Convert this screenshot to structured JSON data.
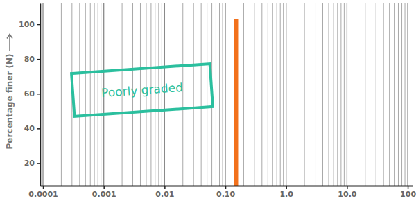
{
  "chart_data": {
    "type": "bar",
    "ylabel": "Percentage finer (N)",
    "x": [
      0.15
    ],
    "values": [
      103
    ],
    "color": "#f2711c",
    "log": "x",
    "grid": true,
    "xlim": [
      9e-05,
      120
    ],
    "xticks": [
      {
        "value": 0.0001,
        "label": "0.0001"
      },
      {
        "value": 0.001,
        "label": "0.001"
      },
      {
        "value": 0.01,
        "label": "0.01"
      },
      {
        "value": 0.1,
        "label": "0.10"
      },
      {
        "value": 1,
        "label": "1.0"
      },
      {
        "value": 10,
        "label": "10.0"
      },
      100
    ],
    "ylim": [
      7,
      112
    ],
    "yticks": [
      20,
      40,
      60,
      80,
      100
    ],
    "annotations": [
      {
        "text": "Poorly graded",
        "color": "#2bbf9e"
      }
    ]
  }
}
